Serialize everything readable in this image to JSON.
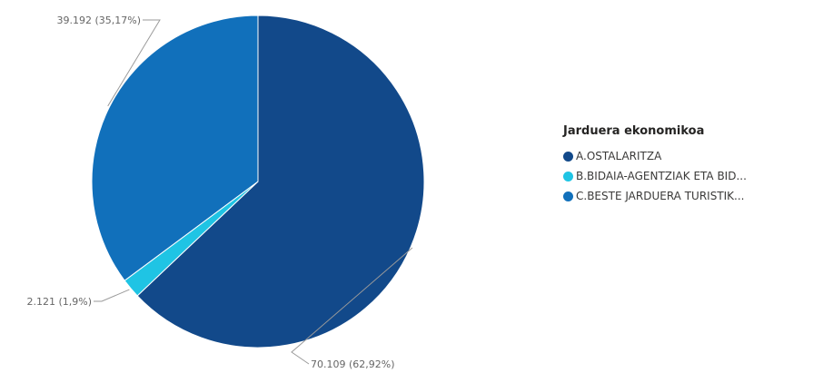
{
  "chart_data": {
    "type": "pie",
    "title": "",
    "legend_title": "Jarduera ekonomikoa",
    "legend_position": "right",
    "slices": [
      {
        "name": "A.OSTALARITZA",
        "legend_label": "A.OSTALARITZA",
        "value": 70109,
        "label": "70.109 (62,92%)",
        "color": "#12498a"
      },
      {
        "name": "B.BIDAIA-AGENTZIAK ETA BID...",
        "legend_label": "B.BIDAIA-AGENTZIAK ETA BID...",
        "value": 2121,
        "label": "2.121 (1,9%)",
        "color": "#1fc4e4"
      },
      {
        "name": "C.BESTE JARDUERA TURISTIK...",
        "legend_label": "C.BESTE JARDUERA TURISTIK...",
        "value": 39192,
        "label": "39.192 (35,17%)",
        "color": "#1170bb"
      }
    ]
  }
}
